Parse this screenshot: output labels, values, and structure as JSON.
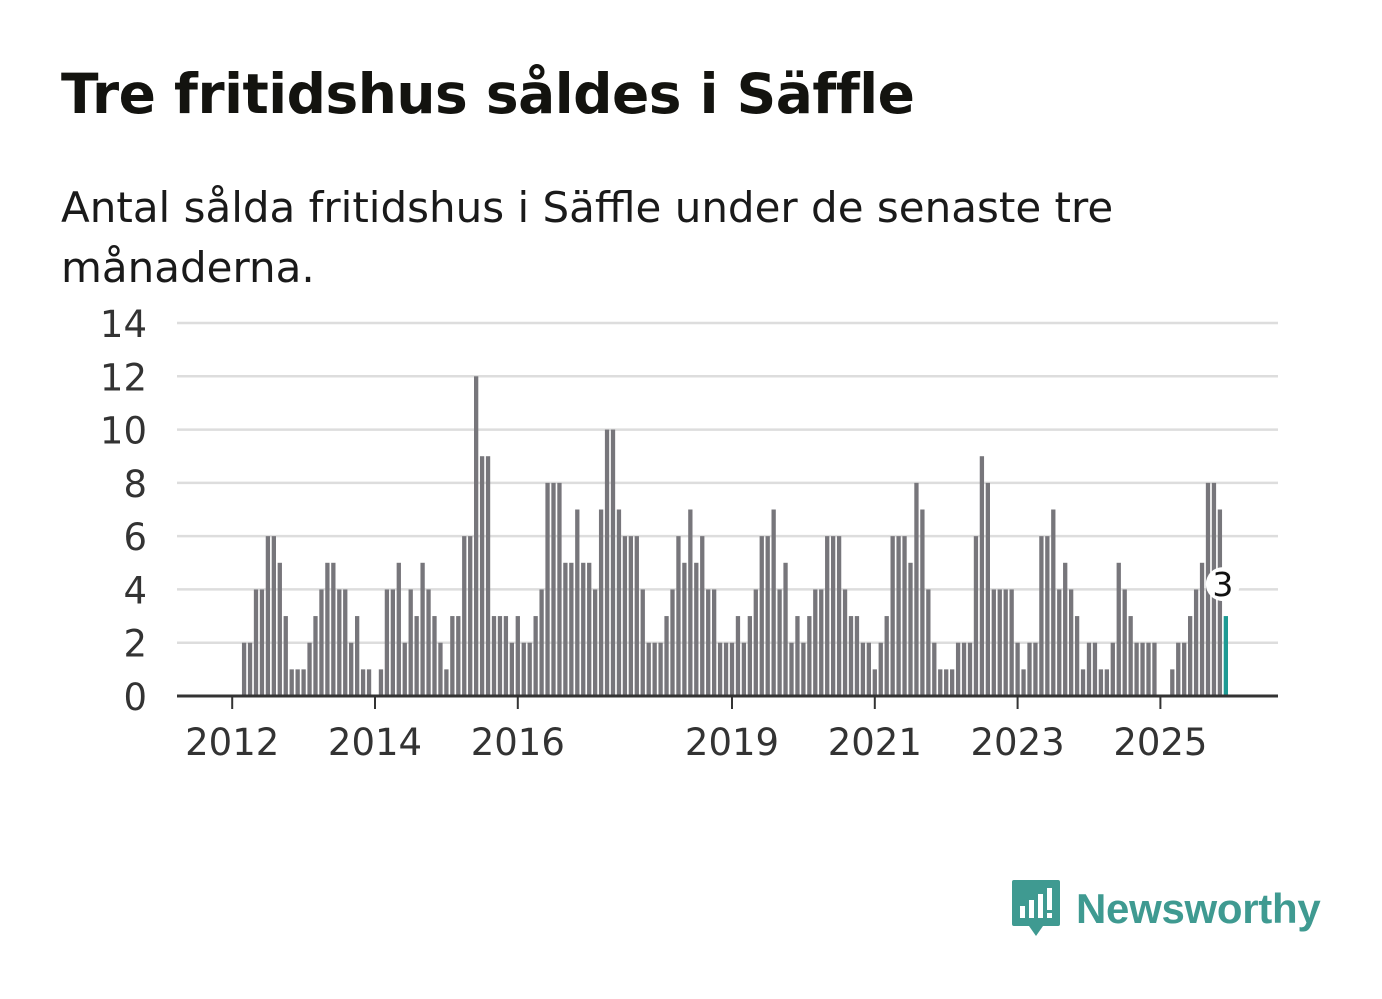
{
  "header": {
    "title": "Tre fritidshus såldes i Säffle",
    "subtitle": "Antal sålda fritidshus i Säffle under de senaste tre månaderna."
  },
  "brand": {
    "name": "Newsworthy",
    "icon": "newsworthy-logo-icon",
    "color": "#3f9a91"
  },
  "colors": {
    "bar": "#77767b",
    "highlight": "#1d9a93",
    "grid": "#dddddd",
    "axis": "#333333"
  },
  "chart_data": {
    "type": "bar",
    "title": "Tre fritidshus såldes i Säffle",
    "xlabel": "",
    "ylabel": "",
    "ylim": [
      0,
      14
    ],
    "yticks": [
      "0",
      "2",
      "4",
      "6",
      "8",
      "10",
      "12",
      "14"
    ],
    "first_period": "2011-04",
    "xticks": [
      {
        "label": "2012",
        "index": 9
      },
      {
        "label": "2014",
        "index": 33
      },
      {
        "label": "2016",
        "index": 57
      },
      {
        "label": "2019",
        "index": 93
      },
      {
        "label": "2021",
        "index": 117
      },
      {
        "label": "2023",
        "index": 141
      },
      {
        "label": "2025",
        "index": 165
      }
    ],
    "highlight": {
      "index": 176,
      "label": "3"
    },
    "values": [
      0,
      0,
      0,
      0,
      0,
      0,
      0,
      0,
      0,
      0,
      0,
      2,
      2,
      4,
      4,
      6,
      6,
      5,
      3,
      1,
      1,
      1,
      2,
      3,
      4,
      5,
      5,
      4,
      4,
      2,
      3,
      1,
      1,
      0,
      1,
      4,
      4,
      5,
      2,
      4,
      3,
      5,
      4,
      3,
      2,
      1,
      3,
      3,
      6,
      6,
      12,
      9,
      9,
      3,
      3,
      3,
      2,
      3,
      2,
      2,
      3,
      4,
      8,
      8,
      8,
      5,
      5,
      7,
      5,
      5,
      4,
      7,
      10,
      10,
      7,
      6,
      6,
      6,
      4,
      2,
      2,
      2,
      3,
      4,
      6,
      5,
      7,
      5,
      6,
      4,
      4,
      2,
      2,
      2,
      3,
      2,
      3,
      4,
      6,
      6,
      7,
      4,
      5,
      2,
      3,
      2,
      3,
      4,
      4,
      6,
      6,
      6,
      4,
      3,
      3,
      2,
      2,
      1,
      2,
      3,
      6,
      6,
      6,
      5,
      8,
      7,
      4,
      2,
      1,
      1,
      1,
      2,
      2,
      2,
      6,
      9,
      8,
      4,
      4,
      4,
      4,
      2,
      1,
      2,
      2,
      6,
      6,
      7,
      4,
      5,
      4,
      3,
      1,
      2,
      2,
      1,
      1,
      2,
      5,
      4,
      3,
      2,
      2,
      2,
      2,
      0,
      0,
      1,
      2,
      2,
      3,
      4,
      5,
      8,
      8,
      7,
      3
    ]
  }
}
